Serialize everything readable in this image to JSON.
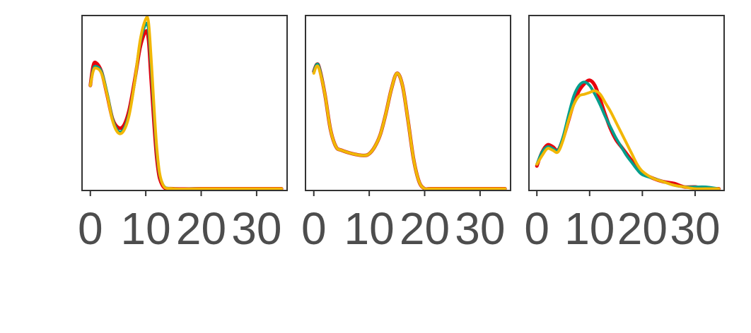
{
  "chart_data": [
    {
      "type": "line",
      "x_ticks": [
        0,
        10,
        20,
        30
      ],
      "xlim": [
        -1.5,
        35.5
      ],
      "ylim": [
        0,
        1.0
      ],
      "y_ticks_visible": false,
      "grid": false,
      "series": [
        {
          "color": "#e8000b",
          "x": [
            0,
            0.5,
            1,
            2,
            3,
            4,
            5,
            6,
            7,
            8,
            9,
            10,
            10.5,
            11,
            12,
            13,
            15,
            20,
            25,
            30,
            34.5
          ],
          "y": [
            0.6,
            0.71,
            0.73,
            0.68,
            0.55,
            0.41,
            0.36,
            0.37,
            0.46,
            0.63,
            0.82,
            0.91,
            0.86,
            0.62,
            0.18,
            0.03,
            0.01,
            0.01,
            0.01,
            0.01,
            0.01
          ]
        },
        {
          "color": "#009e8c",
          "x": [
            0,
            0.5,
            1,
            2,
            3,
            4,
            5,
            6,
            7,
            8,
            9,
            10,
            10.5,
            11,
            12,
            13,
            15,
            20,
            25,
            30,
            34.5
          ],
          "y": [
            0.6,
            0.69,
            0.71,
            0.68,
            0.56,
            0.41,
            0.34,
            0.35,
            0.44,
            0.62,
            0.85,
            0.95,
            0.92,
            0.7,
            0.22,
            0.04,
            0.01,
            0.01,
            0.01,
            0.01,
            0.01
          ]
        },
        {
          "color": "#f2b705",
          "x": [
            0,
            0.5,
            1,
            2,
            3,
            4,
            5,
            6,
            7,
            8,
            9,
            10,
            10.5,
            11,
            12,
            13,
            15,
            20,
            25,
            30,
            34.5
          ],
          "y": [
            0.6,
            0.68,
            0.7,
            0.67,
            0.55,
            0.4,
            0.33,
            0.34,
            0.43,
            0.62,
            0.86,
            0.98,
            0.96,
            0.74,
            0.24,
            0.04,
            0.01,
            0.01,
            0.01,
            0.01,
            0.01
          ]
        }
      ]
    },
    {
      "type": "line",
      "x_ticks": [
        0,
        10,
        20,
        30
      ],
      "xlim": [
        -1.5,
        35.5
      ],
      "ylim": [
        0,
        1.0
      ],
      "y_ticks_visible": false,
      "grid": false,
      "series": [
        {
          "color": "#e8000b",
          "x": [
            0,
            0.5,
            1,
            2,
            3,
            4,
            5,
            7,
            9,
            10,
            11,
            12,
            13,
            14,
            15,
            16,
            17,
            18,
            19,
            20,
            21,
            25,
            30,
            34.5
          ],
          "y": [
            0.68,
            0.72,
            0.7,
            0.55,
            0.35,
            0.25,
            0.23,
            0.21,
            0.2,
            0.21,
            0.25,
            0.32,
            0.44,
            0.58,
            0.67,
            0.6,
            0.4,
            0.18,
            0.05,
            0.01,
            0.01,
            0.01,
            0.01,
            0.01
          ]
        },
        {
          "color": "#009e8c",
          "x": [
            0,
            0.5,
            1,
            2,
            3,
            4,
            5,
            7,
            9,
            10,
            11,
            12,
            13,
            14,
            15,
            16,
            17,
            18,
            19,
            20,
            21,
            25,
            30,
            34.5
          ],
          "y": [
            0.68,
            0.72,
            0.7,
            0.55,
            0.35,
            0.25,
            0.23,
            0.21,
            0.2,
            0.21,
            0.25,
            0.32,
            0.44,
            0.58,
            0.67,
            0.6,
            0.4,
            0.18,
            0.05,
            0.01,
            0.01,
            0.01,
            0.01,
            0.01
          ]
        },
        {
          "color": "#f2b705",
          "x": [
            0,
            0.5,
            1,
            2,
            3,
            4,
            5,
            7,
            9,
            10,
            11,
            12,
            13,
            14,
            15,
            16,
            17,
            18,
            19,
            20,
            21,
            25,
            30,
            34.5
          ],
          "y": [
            0.67,
            0.71,
            0.69,
            0.55,
            0.35,
            0.25,
            0.23,
            0.21,
            0.2,
            0.21,
            0.25,
            0.32,
            0.44,
            0.58,
            0.67,
            0.6,
            0.4,
            0.18,
            0.05,
            0.01,
            0.01,
            0.01,
            0.01,
            0.01
          ]
        }
      ]
    },
    {
      "type": "line",
      "x_ticks": [
        0,
        10,
        20,
        30
      ],
      "xlim": [
        -1.5,
        35.5
      ],
      "ylim": [
        0,
        1.0
      ],
      "y_ticks_visible": false,
      "grid": false,
      "series": [
        {
          "color": "#e8000b",
          "x": [
            0,
            1,
            2,
            3,
            4,
            5,
            6,
            7,
            8,
            9,
            10,
            11,
            12,
            13,
            14,
            15,
            16,
            17,
            18,
            19,
            20,
            22,
            24,
            26,
            28,
            30,
            32,
            34.5
          ],
          "y": [
            0.14,
            0.22,
            0.26,
            0.25,
            0.23,
            0.3,
            0.4,
            0.5,
            0.57,
            0.61,
            0.63,
            0.6,
            0.52,
            0.43,
            0.35,
            0.29,
            0.25,
            0.21,
            0.17,
            0.13,
            0.1,
            0.07,
            0.05,
            0.04,
            0.02,
            0.02,
            0.01,
            0.01
          ]
        },
        {
          "color": "#009e8c",
          "x": [
            0,
            1,
            2,
            3,
            4,
            5,
            6,
            7,
            8,
            9,
            10,
            11,
            12,
            13,
            14,
            15,
            16,
            17,
            18,
            19,
            20,
            22,
            24,
            26,
            28,
            30,
            32,
            34.5
          ],
          "y": [
            0.15,
            0.22,
            0.25,
            0.24,
            0.23,
            0.31,
            0.43,
            0.54,
            0.6,
            0.62,
            0.6,
            0.55,
            0.49,
            0.42,
            0.36,
            0.3,
            0.25,
            0.2,
            0.16,
            0.12,
            0.09,
            0.07,
            0.05,
            0.03,
            0.02,
            0.02,
            0.02,
            0.01
          ]
        },
        {
          "color": "#f2b705",
          "x": [
            0,
            1,
            2,
            3,
            4,
            5,
            6,
            7,
            8,
            9,
            10,
            11,
            12,
            13,
            14,
            15,
            16,
            17,
            18,
            19,
            20,
            22,
            24,
            26,
            28,
            30,
            32,
            34.5
          ],
          "y": [
            0.15,
            0.2,
            0.24,
            0.23,
            0.22,
            0.29,
            0.4,
            0.49,
            0.54,
            0.55,
            0.56,
            0.57,
            0.55,
            0.5,
            0.45,
            0.39,
            0.33,
            0.27,
            0.21,
            0.15,
            0.11,
            0.07,
            0.05,
            0.03,
            0.02,
            0.01,
            0.01,
            0.01
          ]
        }
      ]
    }
  ]
}
